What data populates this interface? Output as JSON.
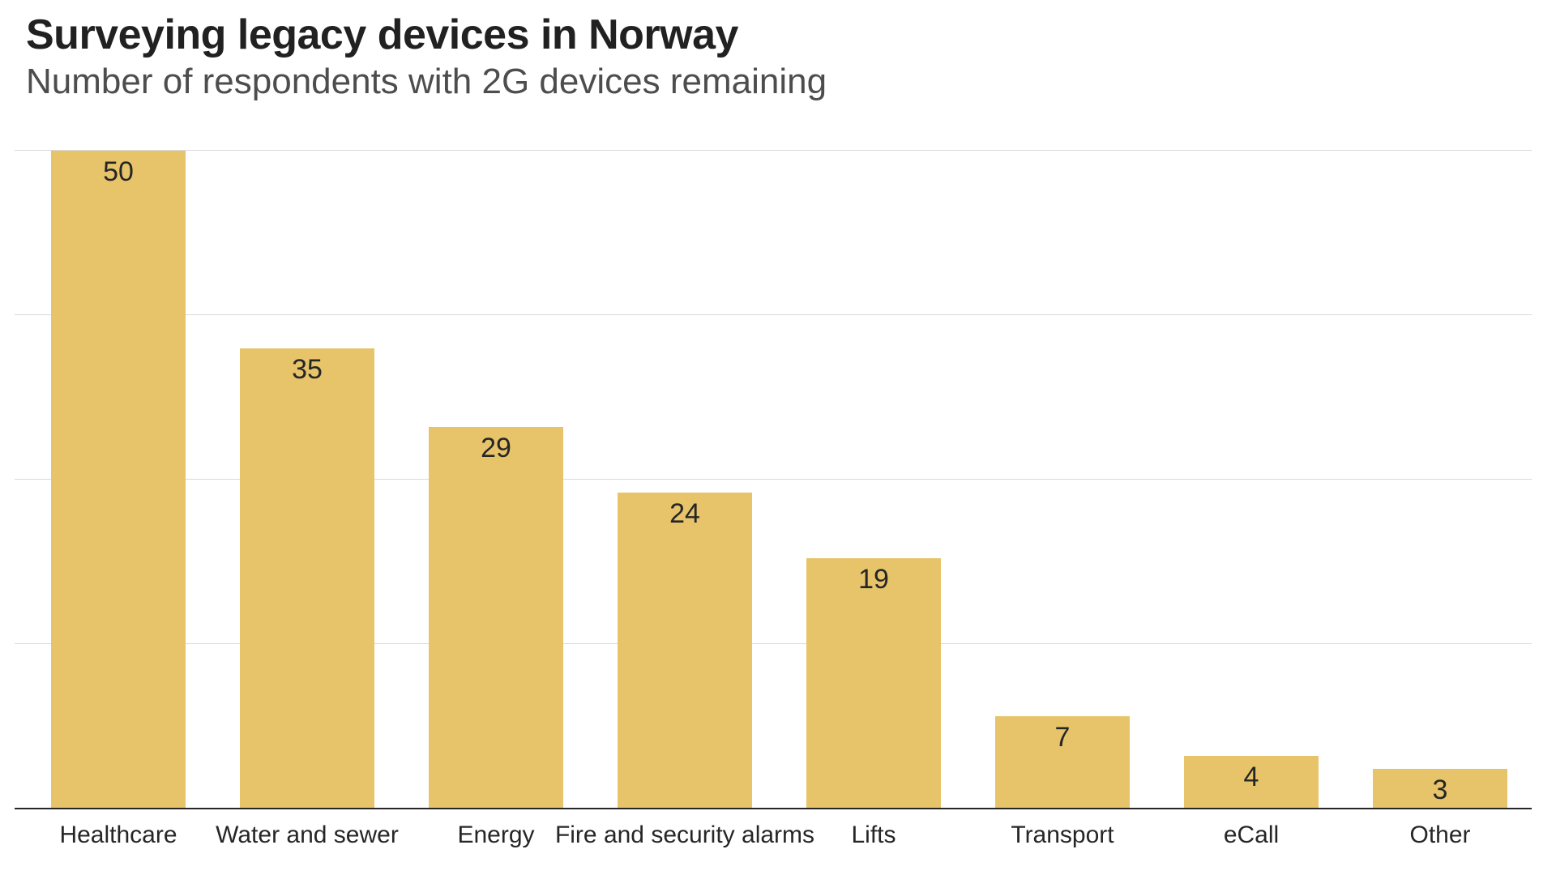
{
  "header": {
    "title": "Surveying legacy devices in Norway",
    "subtitle": "Number of respondents with 2G devices remaining"
  },
  "chart_data": {
    "type": "bar",
    "title": "Surveying legacy devices in Norway",
    "subtitle": "Number of respondents with 2G devices remaining",
    "categories": [
      "Healthcare",
      "Water and sewer",
      "Energy",
      "Fire and security alarms",
      "Lifts",
      "Transport",
      "eCall",
      "Other"
    ],
    "values": [
      50,
      35,
      29,
      24,
      19,
      7,
      4,
      3
    ],
    "xlabel": "",
    "ylabel": "",
    "ylim": [
      0,
      50
    ],
    "gridline_values": [
      12.5,
      25,
      37.5,
      50
    ],
    "grid": "horizontal-only, no y-axis tick labels",
    "legend_position": "none",
    "value_label_position": "inside-top-center"
  },
  "colors": {
    "bar_fill": "#e7c46a",
    "gridline": "#d9d9d9",
    "axis_line": "#262626",
    "title_text": "#212121",
    "subtitle_text": "#4d4d4d",
    "value_label_text": "#262626",
    "category_label_text": "#262626",
    "background": "#ffffff"
  }
}
